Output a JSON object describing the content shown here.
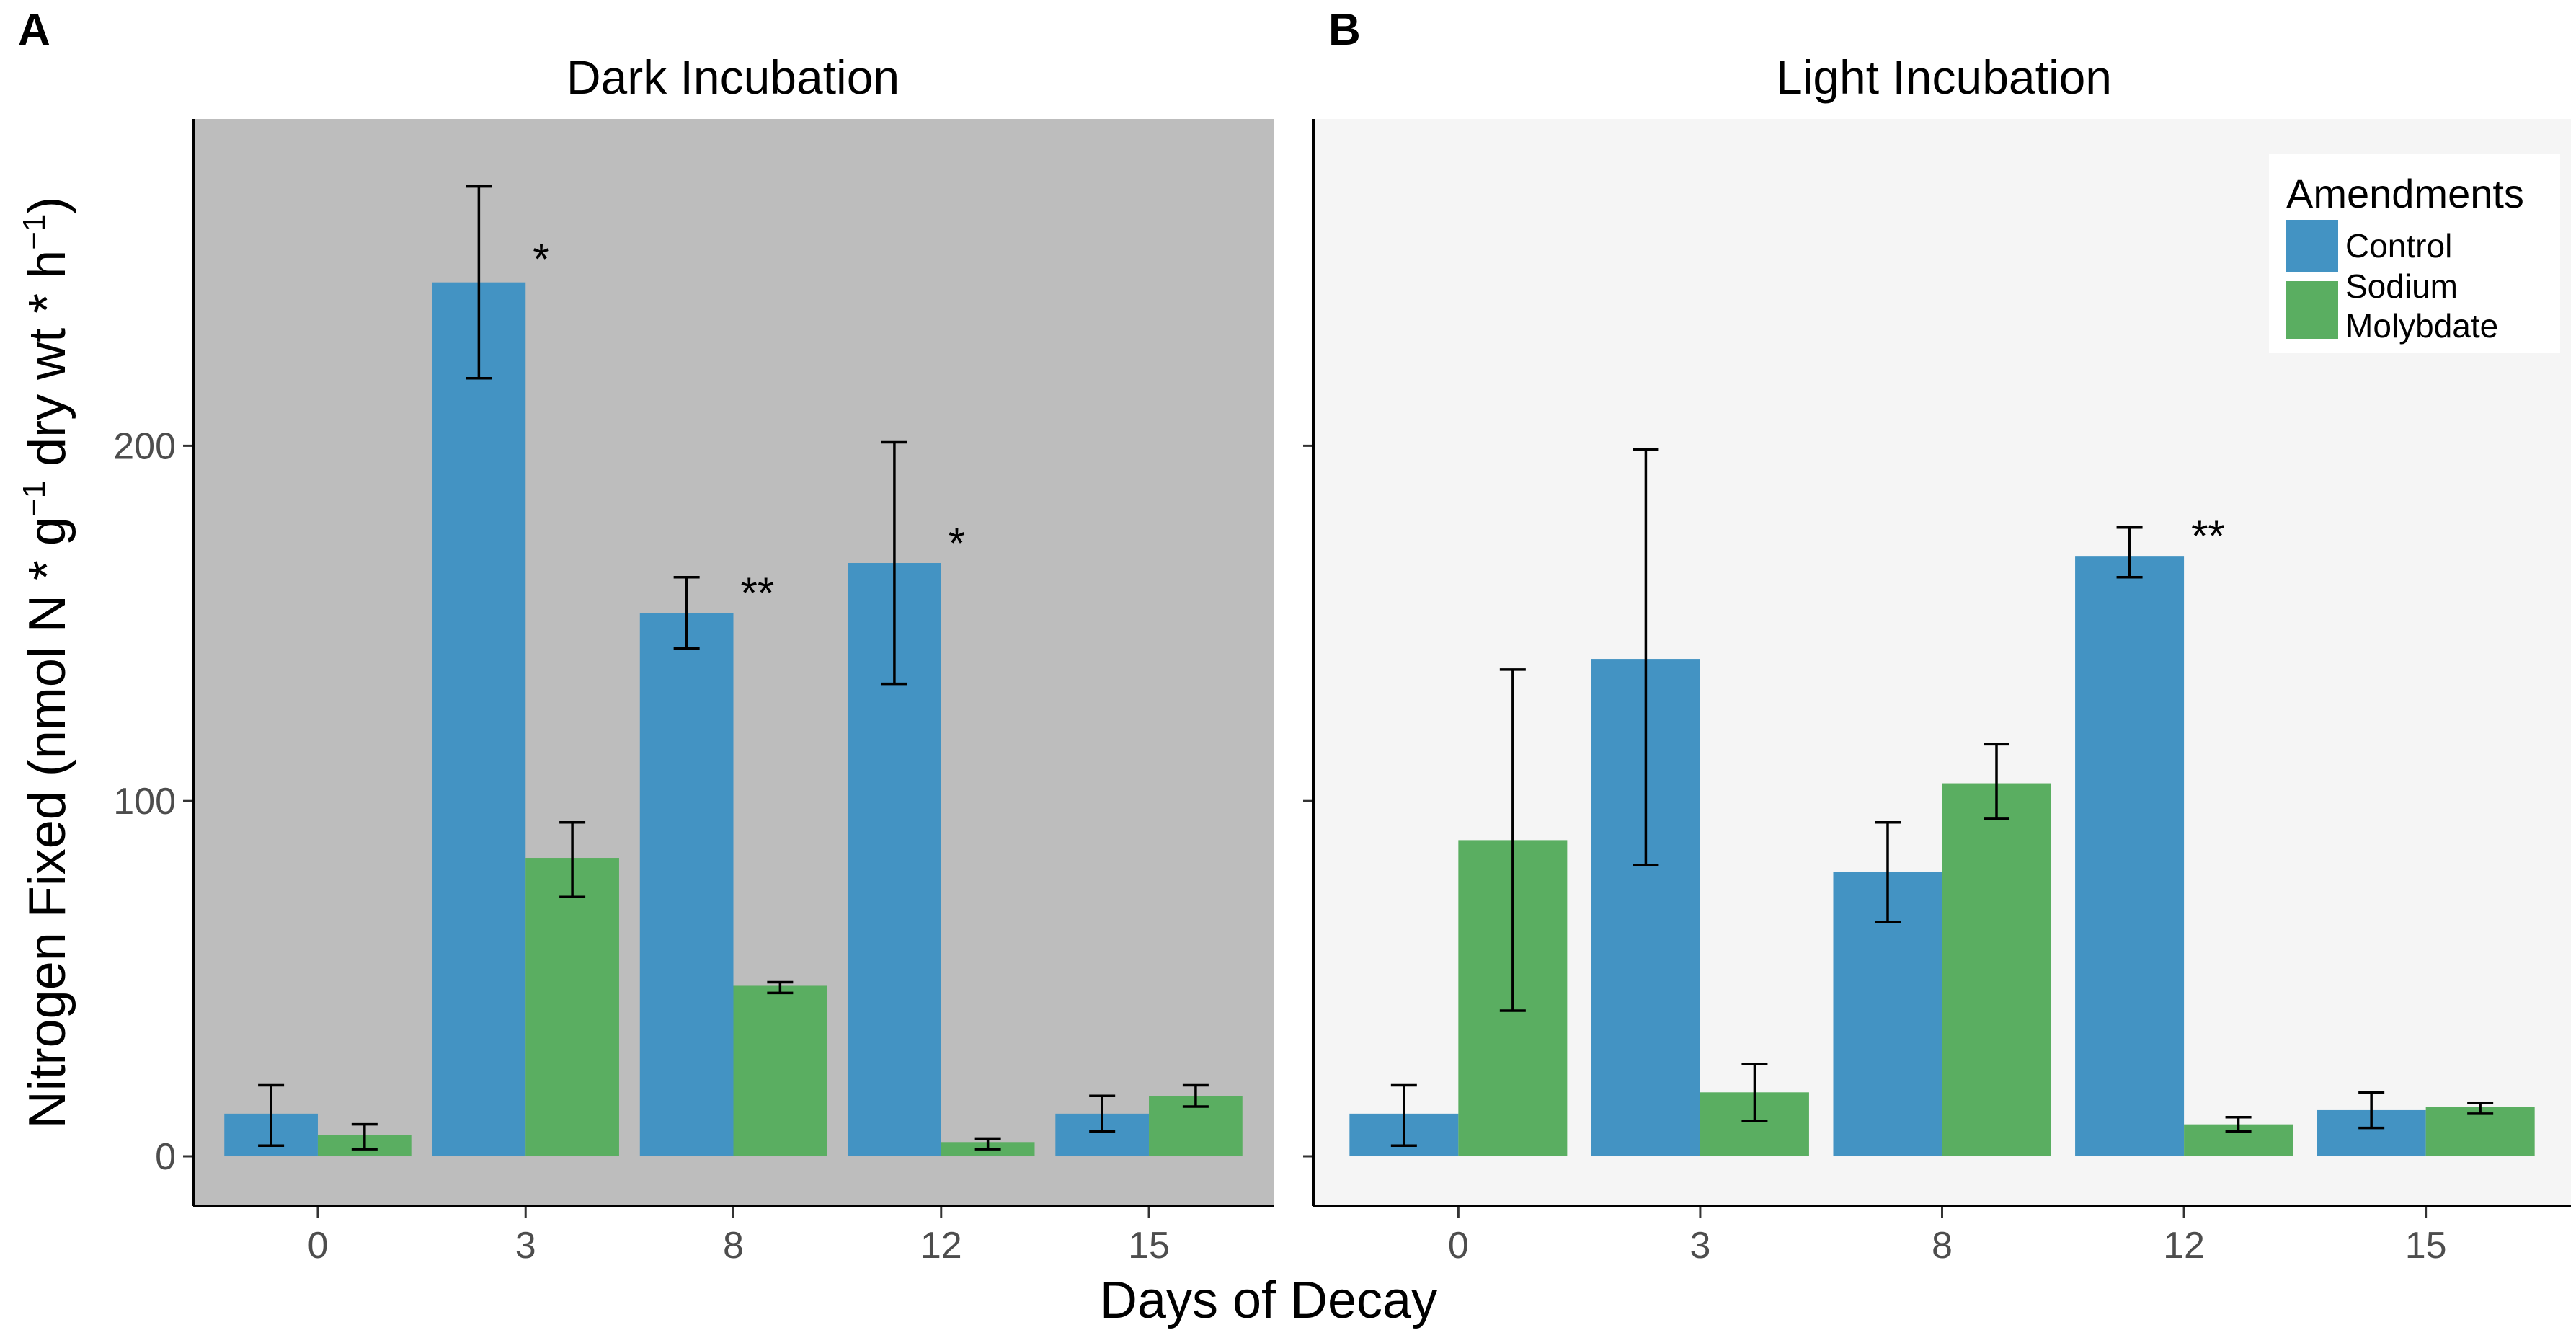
{
  "chart_data": [
    {
      "panel": "A",
      "type": "bar",
      "title": "Dark Incubation",
      "xlabel": "Days of Decay",
      "ylabel": "Nitrogen Fixed (nmol N * g",
      "ylabel_exponent": "−1",
      "ylabel_middle": " dry wt * h",
      "ylabel_exponent2": "−1",
      "ylabel_end": ")",
      "ylim": [
        -14,
        292
      ],
      "yticks": [
        0,
        100,
        200
      ],
      "categories": [
        "0",
        "3",
        "8",
        "12",
        "15"
      ],
      "background": "#bdbdbd",
      "series": [
        {
          "name": "Control",
          "color": "#4393c3",
          "values": [
            12,
            246,
            153,
            167,
            12
          ],
          "err_low": [
            3,
            219,
            143,
            133,
            7
          ],
          "err_high": [
            20,
            273,
            163,
            201,
            17
          ]
        },
        {
          "name": "Sodium Molybdate",
          "color": "#5aae61",
          "values": [
            6,
            84,
            48,
            4,
            17
          ],
          "err_low": [
            2,
            73,
            46,
            2,
            14
          ],
          "err_high": [
            9,
            94,
            49,
            5,
            20
          ]
        }
      ],
      "significance": [
        {
          "category_index": 1,
          "label": "*",
          "y": 248
        },
        {
          "category_index": 2,
          "label": "**",
          "y": 154
        },
        {
          "category_index": 3,
          "label": "*",
          "y": 168
        }
      ]
    },
    {
      "panel": "B",
      "type": "bar",
      "title": "Light Incubation",
      "ylim": [
        -14,
        292
      ],
      "yticks": [
        0,
        100,
        200
      ],
      "categories": [
        "0",
        "3",
        "8",
        "12",
        "15"
      ],
      "background": "#f5f5f5",
      "series": [
        {
          "name": "Control",
          "color": "#4393c3",
          "values": [
            12,
            140,
            80,
            169,
            13
          ],
          "err_low": [
            3,
            82,
            66,
            163,
            8
          ],
          "err_high": [
            20,
            199,
            94,
            177,
            18
          ]
        },
        {
          "name": "Sodium Molybdate",
          "color": "#5aae61",
          "values": [
            89,
            18,
            105,
            9,
            14
          ],
          "err_low": [
            41,
            10,
            95,
            7,
            12
          ],
          "err_high": [
            137,
            26,
            116,
            11,
            15
          ]
        }
      ],
      "significance": [
        {
          "category_index": 3,
          "label": "**",
          "y": 170
        }
      ],
      "legend": {
        "title": "Amendments",
        "items": [
          {
            "label": "Control",
            "color": "#4393c3"
          },
          {
            "label": "Sodium",
            "label2": "Molybdate",
            "color": "#5aae61"
          }
        ],
        "position": "top-right"
      }
    }
  ]
}
